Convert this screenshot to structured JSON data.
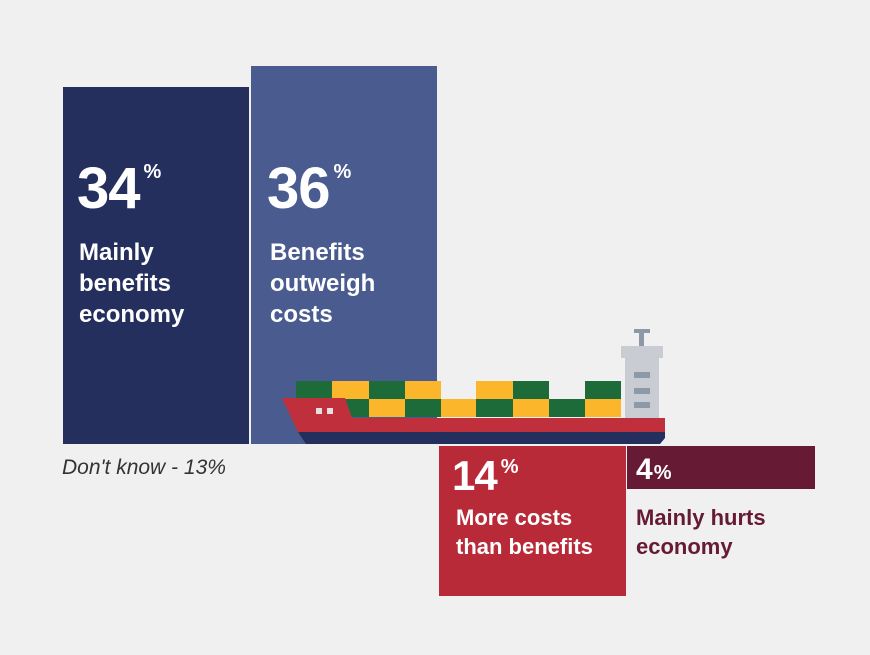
{
  "chart_data": {
    "type": "bar",
    "categories": [
      "Mainly benefits economy",
      "Benefits outweigh costs",
      "More costs than benefits",
      "Mainly hurts economy"
    ],
    "values": [
      34,
      36,
      14,
      4
    ],
    "direction": [
      "positive",
      "positive",
      "negative",
      "negative"
    ],
    "unit": "%",
    "colors": [
      "#252f5d",
      "#4a5c8f",
      "#b82a38",
      "#661a33"
    ],
    "bars": [
      {
        "value": "34",
        "unit": "%",
        "label": "Mainly\nbenefits\neconomy"
      },
      {
        "value": "36",
        "unit": "%",
        "label": "Benefits\noutweigh\ncosts"
      },
      {
        "value": "14",
        "unit": "%",
        "label": "More costs\nthan benefits"
      },
      {
        "value": "4",
        "unit": "%",
        "label": "Mainly hurts\neconomy"
      }
    ],
    "note": "Don't know - 13%"
  },
  "illustration": {
    "icon": "cargo-ship-icon"
  }
}
